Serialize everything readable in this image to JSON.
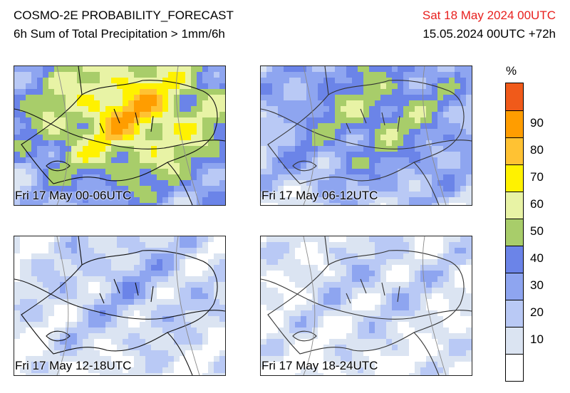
{
  "header": {
    "title": "COSMO-2E PROBABILITY_FORECAST",
    "subtitle": "6h Sum of Total Precipitation > 1mm/6h",
    "valid_time": "Sat 18 May 2024 00UTC",
    "run_info": "15.05.2024 00UTC +72h",
    "valid_color": "#e8201e"
  },
  "panels": [
    {
      "label": "Fri 17 May 00-06UTC",
      "level_percent": 75
    },
    {
      "label": "Fri 17 May 06-12UTC",
      "level_percent": 50
    },
    {
      "label": "Fri 17 May 12-18UTC",
      "level_percent": 25
    },
    {
      "label": "Fri 17 May 18-24UTC",
      "level_percent": 20
    }
  ],
  "colorbar": {
    "unit": "%",
    "ticks": [
      "90",
      "80",
      "70",
      "60",
      "50",
      "40",
      "30",
      "20",
      "10"
    ],
    "colors": [
      "#ffffff",
      "#dbe4f2",
      "#b9c9f5",
      "#8ea5f0",
      "#6b84e8",
      "#a8cd6a",
      "#e8f3a5",
      "#fff200",
      "#ffc233",
      "#ff9d00",
      "#f05a1a"
    ]
  }
}
